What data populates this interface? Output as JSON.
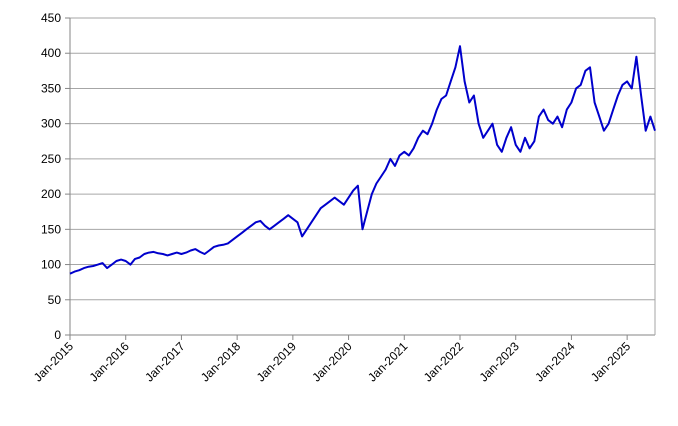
{
  "chart_data": {
    "type": "line",
    "x": [
      "2015-01",
      "2015-02",
      "2015-03",
      "2015-04",
      "2015-05",
      "2015-06",
      "2015-07",
      "2015-08",
      "2015-09",
      "2015-10",
      "2015-11",
      "2015-12",
      "2016-01",
      "2016-02",
      "2016-03",
      "2016-04",
      "2016-05",
      "2016-06",
      "2016-07",
      "2016-08",
      "2016-09",
      "2016-10",
      "2016-11",
      "2016-12",
      "2017-01",
      "2017-02",
      "2017-03",
      "2017-04",
      "2017-05",
      "2017-06",
      "2017-07",
      "2017-08",
      "2017-09",
      "2017-10",
      "2017-11",
      "2017-12",
      "2018-01",
      "2018-02",
      "2018-03",
      "2018-04",
      "2018-05",
      "2018-06",
      "2018-07",
      "2018-08",
      "2018-09",
      "2018-10",
      "2018-11",
      "2018-12",
      "2019-01",
      "2019-02",
      "2019-03",
      "2019-04",
      "2019-05",
      "2019-06",
      "2019-07",
      "2019-08",
      "2019-09",
      "2019-10",
      "2019-11",
      "2019-12",
      "2020-01",
      "2020-02",
      "2020-03",
      "2020-04",
      "2020-05",
      "2020-06",
      "2020-07",
      "2020-08",
      "2020-09",
      "2020-10",
      "2020-11",
      "2020-12",
      "2021-01",
      "2021-02",
      "2021-03",
      "2021-04",
      "2021-05",
      "2021-06",
      "2021-07",
      "2021-08",
      "2021-09",
      "2021-10",
      "2021-11",
      "2021-12",
      "2022-01",
      "2022-02",
      "2022-03",
      "2022-04",
      "2022-05",
      "2022-06",
      "2022-07",
      "2022-08",
      "2022-09",
      "2022-10",
      "2022-11",
      "2022-12",
      "2023-01",
      "2023-02",
      "2023-03",
      "2023-04",
      "2023-05",
      "2023-06",
      "2023-07",
      "2023-08",
      "2023-09",
      "2023-10",
      "2023-11",
      "2023-12",
      "2024-01",
      "2024-02",
      "2024-03",
      "2024-04",
      "2024-05",
      "2024-06",
      "2024-07",
      "2024-08",
      "2024-09",
      "2024-10",
      "2024-11",
      "2024-12",
      "2025-01",
      "2025-02",
      "2025-03",
      "2025-04",
      "2025-05",
      "2025-06",
      "2025-07"
    ],
    "values": [
      87,
      90,
      92,
      95,
      97,
      98,
      100,
      102,
      95,
      100,
      105,
      107,
      105,
      100,
      108,
      110,
      115,
      117,
      118,
      116,
      115,
      113,
      115,
      117,
      115,
      117,
      120,
      122,
      118,
      115,
      120,
      125,
      127,
      128,
      130,
      135,
      140,
      145,
      150,
      155,
      160,
      162,
      155,
      150,
      155,
      160,
      165,
      170,
      165,
      160,
      140,
      150,
      160,
      170,
      180,
      185,
      190,
      195,
      190,
      185,
      195,
      205,
      212,
      150,
      175,
      200,
      215,
      225,
      235,
      250,
      240,
      255,
      260,
      255,
      265,
      280,
      290,
      285,
      300,
      320,
      335,
      340,
      360,
      380,
      410,
      360,
      330,
      340,
      300,
      280,
      290,
      300,
      270,
      260,
      280,
      295,
      270,
      260,
      280,
      265,
      275,
      310,
      320,
      305,
      300,
      310,
      295,
      320,
      330,
      350,
      355,
      375,
      380,
      330,
      310,
      290,
      300,
      320,
      340,
      355,
      360,
      350,
      395,
      340,
      290,
      310,
      290
    ],
    "color": "#0000cc",
    "xlim": [
      "2015-01",
      "2025-07"
    ],
    "xticks": [
      {
        "value": "2015-01",
        "label": "Jan-2015"
      },
      {
        "value": "2016-01",
        "label": "Jan-2016"
      },
      {
        "value": "2017-01",
        "label": "Jan-2017"
      },
      {
        "value": "2018-01",
        "label": "Jan-2018"
      },
      {
        "value": "2019-01",
        "label": "Jan-2019"
      },
      {
        "value": "2020-01",
        "label": "Jan-2020"
      },
      {
        "value": "2021-01",
        "label": "Jan-2021"
      },
      {
        "value": "2022-01",
        "label": "Jan-2022"
      },
      {
        "value": "2023-01",
        "label": "Jan-2023"
      },
      {
        "value": "2024-01",
        "label": "Jan-2024"
      },
      {
        "value": "2025-01",
        "label": "Jan-2025"
      }
    ],
    "ylim": [
      0,
      450
    ],
    "yticks": [
      0,
      50,
      100,
      150,
      200,
      250,
      300,
      350,
      400,
      450
    ],
    "grid": true
  }
}
